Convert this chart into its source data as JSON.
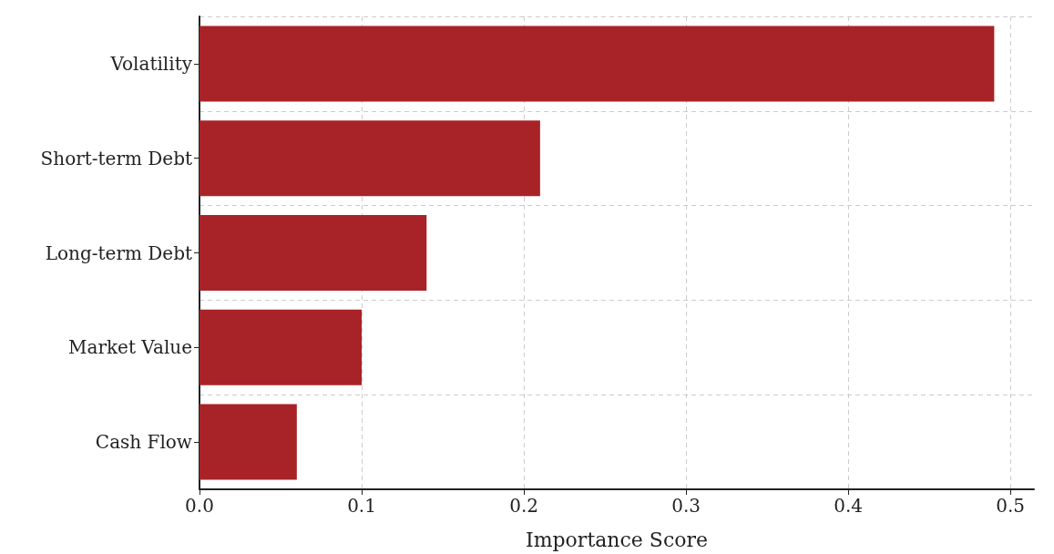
{
  "chart_data": {
    "type": "bar",
    "orientation": "horizontal",
    "xlabel": "Importance Score",
    "categories": [
      "Volatility",
      "Short-term Debt",
      "Long-term Debt",
      "Market Value",
      "Cash Flow"
    ],
    "values": [
      0.49,
      0.21,
      0.14,
      0.1,
      0.06
    ],
    "color": "#a82327",
    "xlim": [
      0,
      0.5145
    ],
    "xticks": [
      {
        "value": 0,
        "label": "0.0"
      },
      0.1,
      0.2,
      0.3,
      0.4,
      0.5
    ],
    "grid": true
  }
}
